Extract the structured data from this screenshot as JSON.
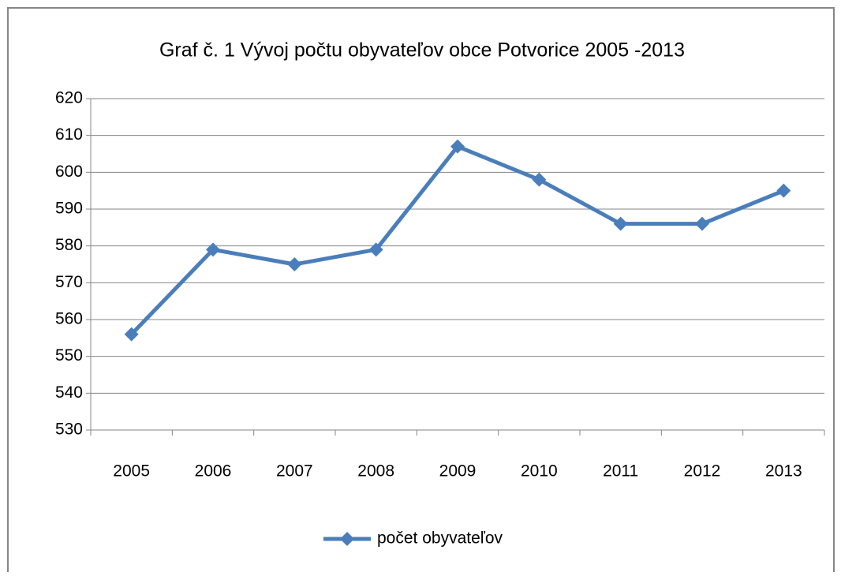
{
  "chart_data": {
    "type": "line",
    "title": "Graf č. 1 Vývoj počtu obyvateľov obce Potvorice 2005 -2013",
    "categories": [
      "2005",
      "2006",
      "2007",
      "2008",
      "2009",
      "2010",
      "2011",
      "2012",
      "2013"
    ],
    "series": [
      {
        "name": "počet obyvateľov",
        "color": "#4a7ebb",
        "values": [
          556,
          579,
          575,
          579,
          607,
          598,
          586,
          586,
          595
        ]
      }
    ],
    "ylim": [
      530,
      620
    ],
    "yticks": [
      530,
      540,
      550,
      560,
      570,
      580,
      590,
      600,
      610,
      620
    ],
    "grid": true,
    "legend": "bottom"
  }
}
